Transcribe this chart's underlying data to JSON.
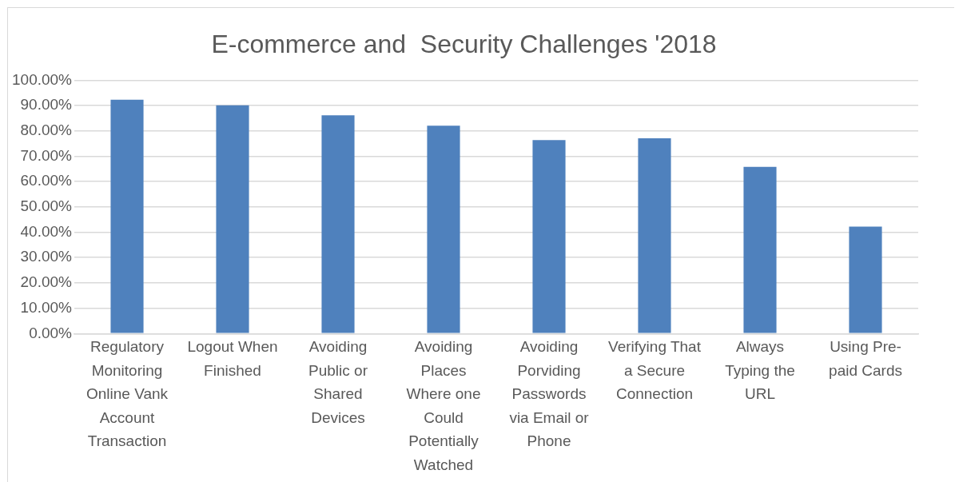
{
  "chart_data": {
    "type": "bar",
    "title": "E-commerce and  Security Challenges '2018",
    "categories": [
      "Regulatory Monitoring Online Vank Account Transaction",
      "Logout When Finished",
      "Avoiding Public or Shared Devices",
      "Avoiding Places Where one Could Potentially Watched",
      "Avoiding Porviding Passwords via Email or Phone",
      "Verifying That a Secure Connection",
      "Always Typing the URL",
      "Using Pre-paid Cards"
    ],
    "values": [
      92.3,
      90.1,
      86.2,
      82.1,
      76.4,
      77.1,
      65.8,
      42.2
    ],
    "color": "#4f81bd",
    "ylim": [
      0,
      100
    ],
    "yticks": [
      {
        "value": 0,
        "label": "0.00%"
      },
      {
        "value": 10,
        "label": "10.00%"
      },
      {
        "value": 20,
        "label": "20.00%"
      },
      {
        "value": 30,
        "label": "30.00%"
      },
      {
        "value": 40,
        "label": "40.00%"
      },
      {
        "value": 50,
        "label": "50.00%"
      },
      {
        "value": 60,
        "label": "60.00%"
      },
      {
        "value": 70,
        "label": "70.00%"
      },
      {
        "value": 80,
        "label": "80.00%"
      },
      {
        "value": 90,
        "label": "90.00%"
      },
      {
        "value": 100,
        "label": "100.00%"
      }
    ],
    "grid": "y",
    "legend": false
  }
}
